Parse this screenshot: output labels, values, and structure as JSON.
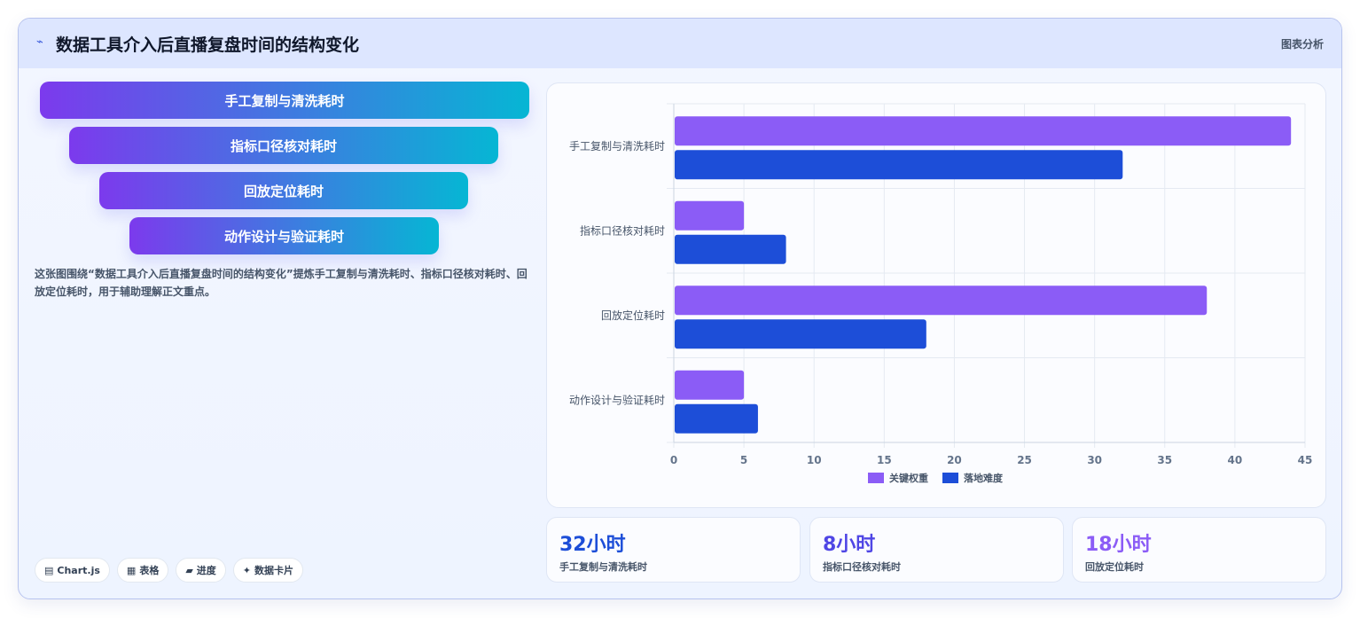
{
  "header": {
    "icon": "chart-line-icon",
    "title": "数据工具介入后直播复盘时间的结构变化",
    "link": "图表分析"
  },
  "funnel": {
    "items": [
      "手工复制与清洗耗时",
      "指标口径核对耗时",
      "回放定位耗时",
      "动作设计与验证耗时"
    ]
  },
  "description": "这张图围绕“数据工具介入后直播复盘时间的结构变化”提炼手工复制与清洗耗时、指标口径核对耗时、回放定位耗时，用于辅助理解正文重点。",
  "chips": [
    {
      "icon": "chart-icon",
      "glyph": "▤",
      "label": "Chart.js"
    },
    {
      "icon": "table-icon",
      "glyph": "▦",
      "label": "表格"
    },
    {
      "icon": "progress-icon",
      "glyph": "▰",
      "label": "进度"
    },
    {
      "icon": "sparkle-icon",
      "glyph": "✦",
      "label": "数据卡片"
    }
  ],
  "stats": [
    {
      "value": "32小时",
      "label": "手工复制与清洗耗时",
      "color": "#1d4ed8"
    },
    {
      "value": "8小时",
      "label": "指标口径核对耗时",
      "color": "#4f46e5"
    },
    {
      "value": "18小时",
      "label": "回放定位耗时",
      "color": "#8b5cf6"
    }
  ],
  "chart_data": {
    "type": "bar",
    "orientation": "horizontal",
    "categories": [
      "手工复制与清洗耗时",
      "指标口径核对耗时",
      "回放定位耗时",
      "动作设计与验证耗时"
    ],
    "series": [
      {
        "name": "关键权重",
        "values": [
          44,
          5,
          38,
          5
        ],
        "color": "#8b5cf6"
      },
      {
        "name": "落地难度",
        "values": [
          32,
          8,
          18,
          6
        ],
        "color": "#1d4ed8"
      }
    ],
    "xlim": [
      0,
      45
    ],
    "xticks": [
      0,
      5,
      10,
      15,
      20,
      25,
      30,
      35,
      40,
      45
    ],
    "grid": true,
    "legend": "bottom"
  }
}
